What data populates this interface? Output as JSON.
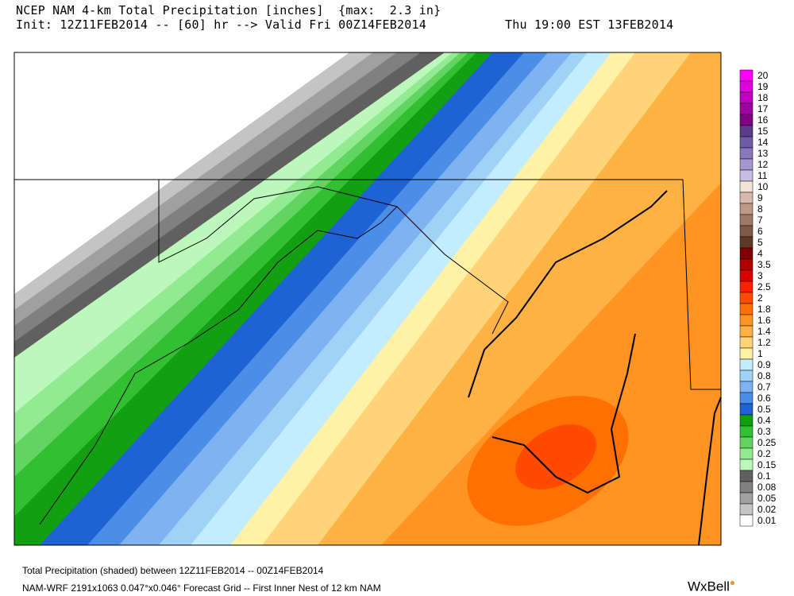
{
  "header": {
    "line1": "NCEP NAM 4-km Total Precipitation [inches]  {max:  2.3 in}",
    "line2_left": "Init: 12Z11FEB2014 -- [60] hr --> Valid Fri 00Z14FEB2014",
    "line2_right": "Thu 19:00 EST 13FEB2014"
  },
  "legend": {
    "levels": [
      {
        "label": "20",
        "color": "#ff00ff"
      },
      {
        "label": "19",
        "color": "#e000e0"
      },
      {
        "label": "18",
        "color": "#c000c0"
      },
      {
        "label": "17",
        "color": "#a000a0"
      },
      {
        "label": "16",
        "color": "#800080"
      },
      {
        "label": "15",
        "color": "#5a3c8c"
      },
      {
        "label": "14",
        "color": "#6e5aa6"
      },
      {
        "label": "13",
        "color": "#8878bc"
      },
      {
        "label": "12",
        "color": "#a496d0"
      },
      {
        "label": "11",
        "color": "#c8bee4"
      },
      {
        "label": "10",
        "color": "#f2e2d8"
      },
      {
        "label": "9",
        "color": "#d8b8a8"
      },
      {
        "label": "8",
        "color": "#c09888"
      },
      {
        "label": "7",
        "color": "#a07868"
      },
      {
        "label": "6",
        "color": "#805848"
      },
      {
        "label": "5",
        "color": "#603828"
      },
      {
        "label": "4",
        "color": "#800000"
      },
      {
        "label": "3.5",
        "color": "#b00000"
      },
      {
        "label": "3",
        "color": "#d80000"
      },
      {
        "label": "2.5",
        "color": "#ff2000"
      },
      {
        "label": "2",
        "color": "#ff4a00"
      },
      {
        "label": "1.8",
        "color": "#ff7000"
      },
      {
        "label": "1.6",
        "color": "#ff9422"
      },
      {
        "label": "1.4",
        "color": "#ffb244"
      },
      {
        "label": "1.2",
        "color": "#ffd478"
      },
      {
        "label": "1",
        "color": "#fff2a6"
      },
      {
        "label": "0.9",
        "color": "#c4ecff"
      },
      {
        "label": "0.8",
        "color": "#a0d2f8"
      },
      {
        "label": "0.7",
        "color": "#7eb2f0"
      },
      {
        "label": "0.6",
        "color": "#4a8ee8"
      },
      {
        "label": "0.5",
        "color": "#1e62d4"
      },
      {
        "label": "0.4",
        "color": "#12a012"
      },
      {
        "label": "0.3",
        "color": "#32c032"
      },
      {
        "label": "0.25",
        "color": "#62d462"
      },
      {
        "label": "0.2",
        "color": "#92ea92"
      },
      {
        "label": "0.15",
        "color": "#bcf8bc"
      },
      {
        "label": "0.1",
        "color": "#606060"
      },
      {
        "label": "0.08",
        "color": "#808080"
      },
      {
        "label": "0.05",
        "color": "#a0a0a0"
      },
      {
        "label": "0.02",
        "color": "#c4c4c4"
      },
      {
        "label": "0.01",
        "color": "#ffffff"
      }
    ]
  },
  "footer": {
    "line1": "Total Precipitation (shaded) between 12Z11FEB2014 -- 00Z14FEB2014",
    "line2": "NAM-WRF 2191x1063 0.047°x0.046° Forecast Grid -- First Inner Nest of 12 km NAM",
    "brand": "WxBell"
  }
}
